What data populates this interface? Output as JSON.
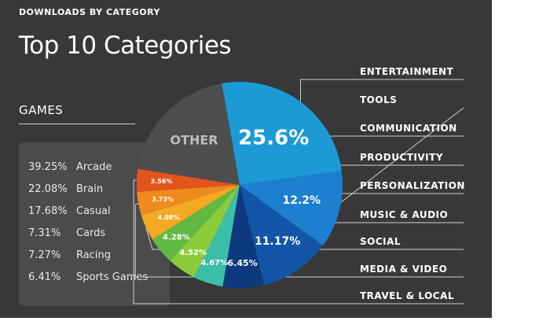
{
  "header": {
    "title": "DOWNLOADS BY CATEGORY"
  },
  "chart_title": "Top 10 Categories",
  "games_panel": {
    "heading": "GAMES",
    "rows": [
      {
        "pct": "39.25%",
        "name": "Arcade"
      },
      {
        "pct": "22.08%",
        "name": "Brain"
      },
      {
        "pct": "17.68%",
        "name": "Casual"
      },
      {
        "pct": "7.31%",
        "name": "Cards"
      },
      {
        "pct": "7.27%",
        "name": "Racing"
      },
      {
        "pct": "6.41%",
        "name": "Sports Games"
      }
    ]
  },
  "chart_data": {
    "type": "pie",
    "title": "Top 10 Categories",
    "slices": [
      {
        "label": "GAMES",
        "value": 25.6,
        "display": "25.6%",
        "color": "#1b9ad6"
      },
      {
        "label": "ENTERTAINMENT",
        "value": 12.2,
        "display": "12.2%",
        "color": "#1c7fcf"
      },
      {
        "label": "TOOLS",
        "value": 11.17,
        "display": "11.17%",
        "color": "#1254a6"
      },
      {
        "label": "COMMUNICATION",
        "value": 6.45,
        "display": "6.45%",
        "color": "#0d3a7f"
      },
      {
        "label": "PRODUCTIVITY",
        "value": 4.67,
        "display": "4.67%",
        "color": "#3cbfa8"
      },
      {
        "label": "PERSONALIZATION",
        "value": 4.52,
        "display": "4.52%",
        "color": "#8ccc3a"
      },
      {
        "label": "MUSIC & AUDIO",
        "value": 4.28,
        "display": "4.28%",
        "color": "#60b943"
      },
      {
        "label": "SOCIAL",
        "value": 4.08,
        "display": "4.08%",
        "color": "#f4a922"
      },
      {
        "label": "MEDIA & VIDEO",
        "value": 3.73,
        "display": "3.73%",
        "color": "#ef8a1f"
      },
      {
        "label": "TRAVEL & LOCAL",
        "value": 3.56,
        "display": "3.56%",
        "color": "#e3541c"
      },
      {
        "label": "OTHER",
        "value": 19.74,
        "display": "OTHER",
        "color": "#4e4e4e"
      }
    ],
    "legend": [
      "ENTERTAINMENT",
      "TOOLS",
      "COMMUNICATION",
      "PRODUCTIVITY",
      "PERSONALIZATION",
      "MUSIC & AUDIO",
      "SOCIAL",
      "MEDIA & VIDEO",
      "TRAVEL & LOCAL"
    ],
    "legend_placement": "right"
  }
}
